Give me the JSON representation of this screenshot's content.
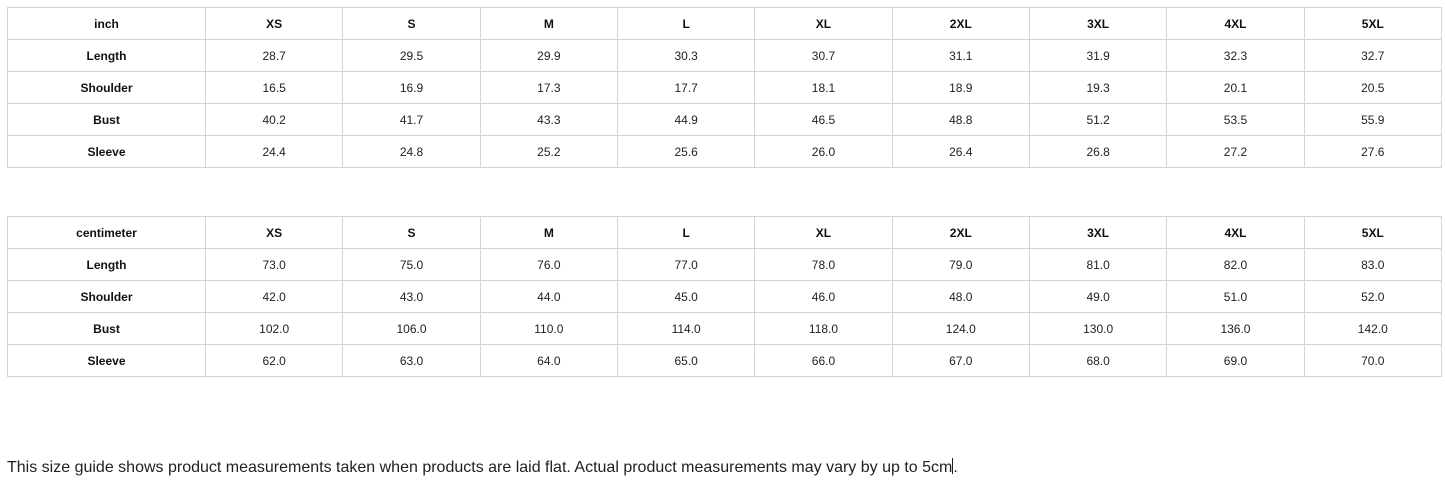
{
  "tables": [
    {
      "unit": "inch",
      "sizes": [
        "XS",
        "S",
        "M",
        "L",
        "XL",
        "2XL",
        "3XL",
        "4XL",
        "5XL"
      ],
      "rows": [
        {
          "label": "Length",
          "values": [
            "28.7",
            "29.5",
            "29.9",
            "30.3",
            "30.7",
            "31.1",
            "31.9",
            "32.3",
            "32.7"
          ]
        },
        {
          "label": "Shoulder",
          "values": [
            "16.5",
            "16.9",
            "17.3",
            "17.7",
            "18.1",
            "18.9",
            "19.3",
            "20.1",
            "20.5"
          ]
        },
        {
          "label": "Bust",
          "values": [
            "40.2",
            "41.7",
            "43.3",
            "44.9",
            "46.5",
            "48.8",
            "51.2",
            "53.5",
            "55.9"
          ]
        },
        {
          "label": "Sleeve",
          "values": [
            "24.4",
            "24.8",
            "25.2",
            "25.6",
            "26.0",
            "26.4",
            "26.8",
            "27.2",
            "27.6"
          ]
        }
      ]
    },
    {
      "unit": "centimeter",
      "sizes": [
        "XS",
        "S",
        "M",
        "L",
        "XL",
        "2XL",
        "3XL",
        "4XL",
        "5XL"
      ],
      "rows": [
        {
          "label": "Length",
          "values": [
            "73.0",
            "75.0",
            "76.0",
            "77.0",
            "78.0",
            "79.0",
            "81.0",
            "82.0",
            "83.0"
          ]
        },
        {
          "label": "Shoulder",
          "values": [
            "42.0",
            "43.0",
            "44.0",
            "45.0",
            "46.0",
            "48.0",
            "49.0",
            "51.0",
            "52.0"
          ]
        },
        {
          "label": "Bust",
          "values": [
            "102.0",
            "106.0",
            "110.0",
            "114.0",
            "118.0",
            "124.0",
            "130.0",
            "136.0",
            "142.0"
          ]
        },
        {
          "label": "Sleeve",
          "values": [
            "62.0",
            "63.0",
            "64.0",
            "65.0",
            "66.0",
            "67.0",
            "68.0",
            "69.0",
            "70.0"
          ]
        }
      ]
    }
  ],
  "note": {
    "text": "This size guide shows product measurements taken when products are laid flat. Actual product measurements may vary by up to 5cm",
    "end": "."
  }
}
